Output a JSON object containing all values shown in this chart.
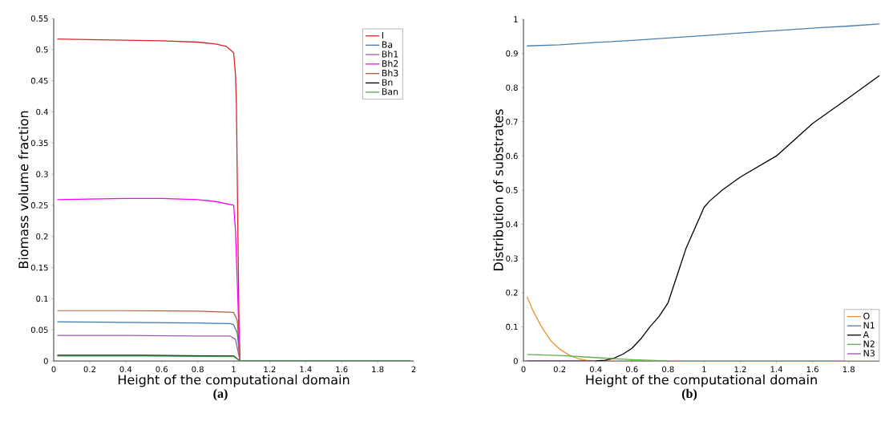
{
  "chart_data": [
    {
      "type": "line",
      "xlabel": "Height of the computational domain",
      "ylabel": "Biomass volume fraction",
      "annotations": [
        "(a)"
      ],
      "xlim": [
        0,
        2
      ],
      "ylim": [
        0,
        0.55
      ],
      "xticks": [
        0,
        0.2,
        0.4,
        0.6,
        0.8,
        1,
        1.2,
        1.4,
        1.6,
        1.8,
        2
      ],
      "yticks": [
        0,
        0.05,
        0.1,
        0.15,
        0.2,
        0.25,
        0.3,
        0.35,
        0.4,
        0.45,
        0.5,
        0.55
      ],
      "grid": false,
      "legend": "top right",
      "line_style": "solid",
      "series": [
        {
          "name": "I",
          "color": "#d62728",
          "x": [
            0.02,
            0.2,
            0.4,
            0.6,
            0.8,
            0.9,
            0.96,
            1.0,
            1.01,
            1.015,
            1.03,
            1.035
          ],
          "values": [
            0.517,
            0.516,
            0.515,
            0.514,
            0.512,
            0.509,
            0.505,
            0.495,
            0.46,
            0.415,
            0.05,
            0
          ]
        },
        {
          "name": "Ba",
          "color": "#3a7ab5",
          "x": [
            0.02,
            0.4,
            0.8,
            0.98,
            1.0,
            1.02,
            1.035,
            1.98
          ],
          "values": [
            0.063,
            0.062,
            0.061,
            0.06,
            0.058,
            0.045,
            0,
            0
          ]
        },
        {
          "name": "Bh1",
          "color": "#a05cb0",
          "x": [
            0.02,
            0.4,
            0.8,
            0.98,
            1.01,
            1.035,
            1.98
          ],
          "values": [
            0.041,
            0.041,
            0.04,
            0.04,
            0.035,
            0,
            0
          ]
        },
        {
          "name": "Bh2",
          "color": "#ff00ff",
          "x": [
            0.02,
            0.2,
            0.4,
            0.6,
            0.8,
            0.9,
            1.0,
            1.01,
            1.035,
            1.98
          ],
          "values": [
            0.259,
            0.26,
            0.261,
            0.261,
            0.259,
            0.256,
            0.25,
            0.21,
            0,
            0
          ]
        },
        {
          "name": "Bh3",
          "color": "#b0603a",
          "x": [
            0.02,
            0.4,
            0.8,
            1.0,
            1.02,
            1.035,
            1.98
          ],
          "values": [
            0.081,
            0.081,
            0.08,
            0.078,
            0.065,
            0,
            0
          ]
        },
        {
          "name": "Bn",
          "color": "#000000",
          "x": [
            0.02,
            0.5,
            1.0,
            1.035,
            1.98
          ],
          "values": [
            0.009,
            0.009,
            0.008,
            0,
            0
          ]
        },
        {
          "name": "Ban",
          "color": "#4caf50",
          "x": [
            0.02,
            0.5,
            1.0,
            1.035,
            1.98
          ],
          "values": [
            0.008,
            0.008,
            0.007,
            0,
            0
          ]
        }
      ]
    },
    {
      "type": "line",
      "xlabel": "Height of the computational domain",
      "ylabel": "Distribution of substrates",
      "annotations": [
        "(b)"
      ],
      "xlim": [
        0,
        1.97
      ],
      "ylim": [
        0,
        1
      ],
      "xticks": [
        0,
        0.2,
        0.4,
        0.6,
        0.8,
        1,
        1.2,
        1.4,
        1.6,
        1.8
      ],
      "yticks": [
        0,
        0.1,
        0.2,
        0.3,
        0.4,
        0.5,
        0.6,
        0.7,
        0.8,
        0.9,
        1
      ],
      "grid": false,
      "legend": "bottom right",
      "line_style": "solid",
      "series": [
        {
          "name": "O",
          "color": "#f0922c",
          "x": [
            0.02,
            0.05,
            0.1,
            0.15,
            0.2,
            0.25,
            0.3,
            0.35,
            0.4,
            1.0,
            1.97
          ],
          "values": [
            0.188,
            0.15,
            0.1,
            0.06,
            0.035,
            0.018,
            0.007,
            0.002,
            0,
            0,
            0
          ]
        },
        {
          "name": "N1",
          "color": "#4a7fb0",
          "x": [
            0.02,
            0.2,
            0.4,
            0.6,
            0.8,
            1.0,
            1.2,
            1.4,
            1.6,
            1.8,
            1.97
          ],
          "values": [
            0.922,
            0.925,
            0.932,
            0.938,
            0.945,
            0.952,
            0.96,
            0.967,
            0.974,
            0.98,
            0.986
          ]
        },
        {
          "name": "A",
          "color": "#000000",
          "x": [
            0.02,
            0.4,
            0.45,
            0.5,
            0.55,
            0.6,
            0.65,
            0.7,
            0.75,
            0.8,
            0.85,
            0.9,
            0.95,
            1.0,
            1.03,
            1.1,
            1.2,
            1.4,
            1.6,
            1.8,
            1.97
          ],
          "values": [
            0,
            0,
            0.002,
            0.008,
            0.02,
            0.037,
            0.065,
            0.1,
            0.13,
            0.17,
            0.25,
            0.33,
            0.39,
            0.45,
            0.468,
            0.5,
            0.538,
            0.6,
            0.695,
            0.77,
            0.835
          ]
        },
        {
          "name": "N2",
          "color": "#5ab04a",
          "x": [
            0.02,
            0.2,
            0.4,
            0.6,
            0.8
          ],
          "values": [
            0.019,
            0.016,
            0.01,
            0.004,
            0
          ]
        },
        {
          "name": "N3",
          "color": "#a050b0",
          "x": [
            0.02,
            0.4
          ],
          "values": [
            0,
            0
          ]
        }
      ]
    }
  ]
}
